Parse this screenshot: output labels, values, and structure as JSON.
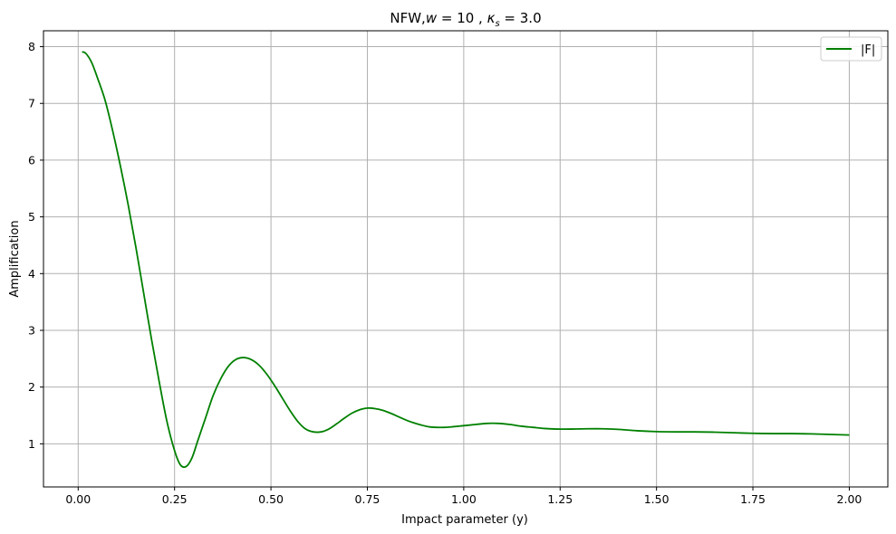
{
  "chart_data": {
    "type": "line",
    "title": "NFW,w = 10 , κs = 3.0",
    "title_parts": {
      "prefix": "NFW,",
      "w_symbol": "w",
      "w_value": " = 10 , ",
      "kappa_symbol": "κ",
      "kappa_sub": "s",
      "kappa_value": " = 3.0"
    },
    "xlabel": "Impact parameter (y)",
    "ylabel": "Amplification",
    "xlim": [
      -0.09,
      2.1
    ],
    "ylim": [
      0.24,
      8.28
    ],
    "xticks": [
      0.0,
      0.25,
      0.5,
      0.75,
      1.0,
      1.25,
      1.5,
      1.75,
      2.0
    ],
    "xtick_labels": [
      "0.00",
      "0.25",
      "0.50",
      "0.75",
      "1.00",
      "1.25",
      "1.50",
      "1.75",
      "2.00"
    ],
    "yticks": [
      1,
      2,
      3,
      4,
      5,
      6,
      7,
      8
    ],
    "ytick_labels": [
      "1",
      "2",
      "3",
      "4",
      "5",
      "6",
      "7",
      "8"
    ],
    "grid": true,
    "legend_position": "top-right",
    "series": [
      {
        "name": "|F|",
        "color": "#008000",
        "points": [
          [
            0.01,
            7.91
          ],
          [
            0.02,
            7.88
          ],
          [
            0.035,
            7.72
          ],
          [
            0.05,
            7.45
          ],
          [
            0.07,
            7.05
          ],
          [
            0.09,
            6.5
          ],
          [
            0.11,
            5.88
          ],
          [
            0.13,
            5.2
          ],
          [
            0.15,
            4.45
          ],
          [
            0.17,
            3.65
          ],
          [
            0.19,
            2.85
          ],
          [
            0.21,
            2.1
          ],
          [
            0.23,
            1.4
          ],
          [
            0.25,
            0.88
          ],
          [
            0.265,
            0.63
          ],
          [
            0.28,
            0.6
          ],
          [
            0.295,
            0.75
          ],
          [
            0.31,
            1.05
          ],
          [
            0.33,
            1.45
          ],
          [
            0.35,
            1.85
          ],
          [
            0.37,
            2.15
          ],
          [
            0.39,
            2.37
          ],
          [
            0.41,
            2.49
          ],
          [
            0.43,
            2.52
          ],
          [
            0.45,
            2.48
          ],
          [
            0.47,
            2.38
          ],
          [
            0.49,
            2.22
          ],
          [
            0.51,
            2.02
          ],
          [
            0.53,
            1.8
          ],
          [
            0.55,
            1.58
          ],
          [
            0.57,
            1.39
          ],
          [
            0.59,
            1.26
          ],
          [
            0.61,
            1.21
          ],
          [
            0.63,
            1.21
          ],
          [
            0.65,
            1.26
          ],
          [
            0.67,
            1.35
          ],
          [
            0.69,
            1.45
          ],
          [
            0.71,
            1.54
          ],
          [
            0.73,
            1.6
          ],
          [
            0.75,
            1.63
          ],
          [
            0.77,
            1.62
          ],
          [
            0.79,
            1.59
          ],
          [
            0.81,
            1.54
          ],
          [
            0.83,
            1.48
          ],
          [
            0.85,
            1.42
          ],
          [
            0.87,
            1.37
          ],
          [
            0.89,
            1.33
          ],
          [
            0.91,
            1.3
          ],
          [
            0.93,
            1.29
          ],
          [
            0.95,
            1.29
          ],
          [
            0.97,
            1.3
          ],
          [
            1.0,
            1.32
          ],
          [
            1.03,
            1.34
          ],
          [
            1.06,
            1.36
          ],
          [
            1.09,
            1.36
          ],
          [
            1.12,
            1.34
          ],
          [
            1.15,
            1.31
          ],
          [
            1.18,
            1.29
          ],
          [
            1.21,
            1.27
          ],
          [
            1.24,
            1.26
          ],
          [
            1.28,
            1.26
          ],
          [
            1.32,
            1.265
          ],
          [
            1.36,
            1.265
          ],
          [
            1.4,
            1.255
          ],
          [
            1.45,
            1.23
          ],
          [
            1.5,
            1.215
          ],
          [
            1.55,
            1.21
          ],
          [
            1.6,
            1.21
          ],
          [
            1.65,
            1.205
          ],
          [
            1.7,
            1.195
          ],
          [
            1.75,
            1.185
          ],
          [
            1.8,
            1.18
          ],
          [
            1.85,
            1.18
          ],
          [
            1.9,
            1.175
          ],
          [
            1.95,
            1.165
          ],
          [
            2.0,
            1.155
          ]
        ]
      }
    ]
  }
}
